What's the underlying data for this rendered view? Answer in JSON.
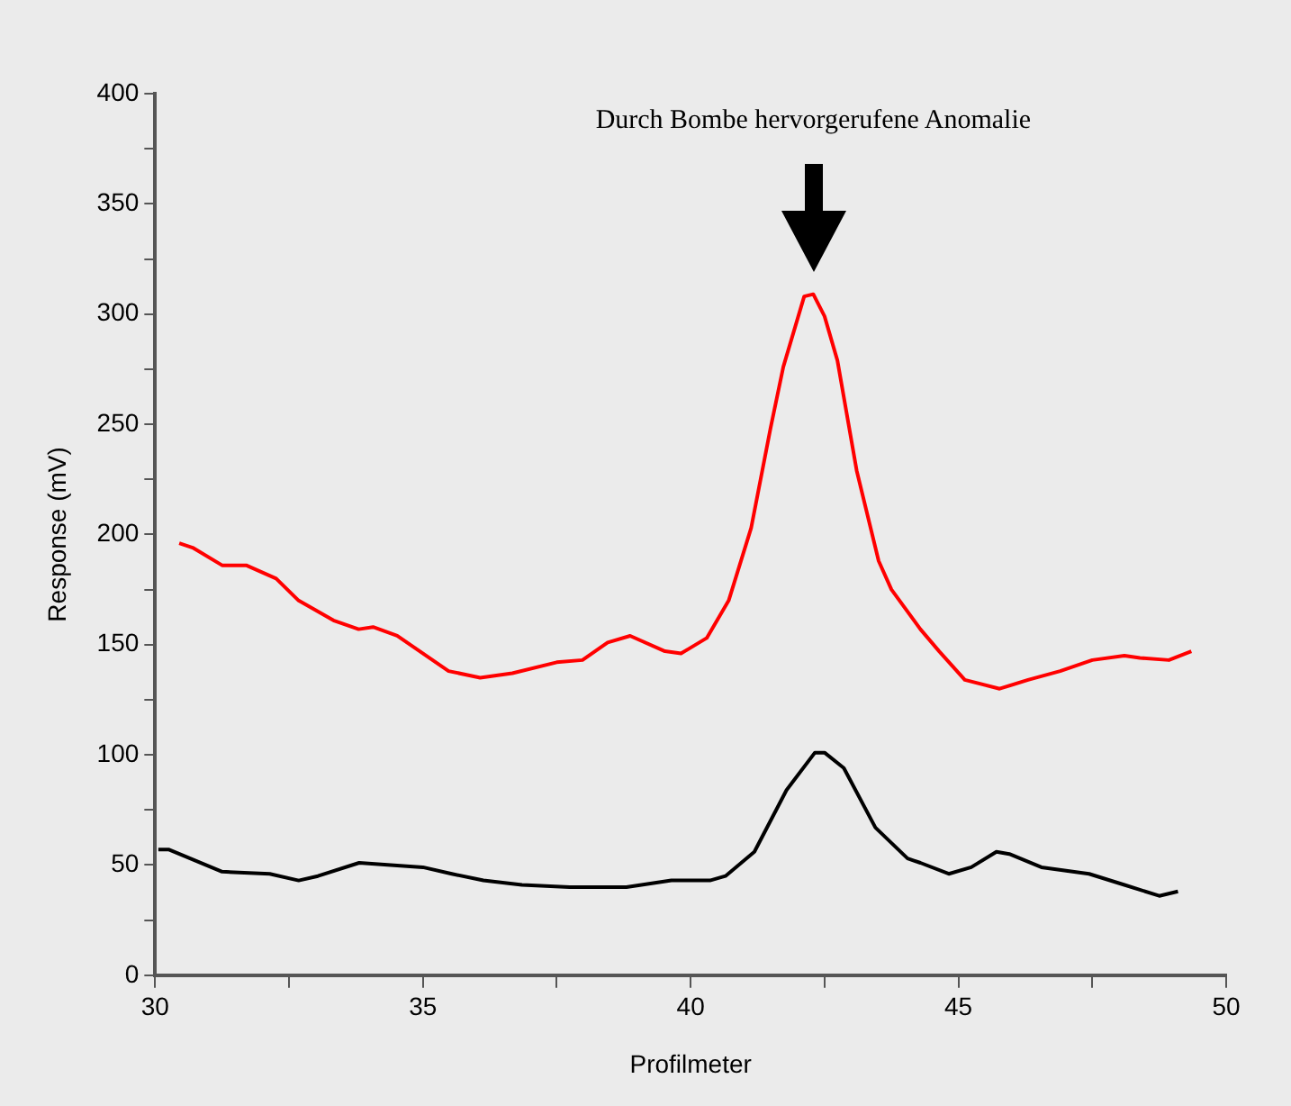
{
  "chart_data": {
    "type": "line",
    "xlabel": "Profilmeter",
    "ylabel": "Response (mV)",
    "xlim": [
      30,
      50
    ],
    "xticks": [
      30,
      {
        "value": 32.5,
        "label": null
      },
      35,
      {
        "value": 37.5,
        "label": null
      },
      40,
      {
        "value": 42.5,
        "label": null
      },
      45,
      {
        "value": 47.5,
        "label": null
      },
      50
    ],
    "ylim": [
      0,
      400
    ],
    "yticks": [
      0,
      {
        "value": 25,
        "label": null
      },
      50,
      {
        "value": 75,
        "label": null
      },
      100,
      {
        "value": 125,
        "label": null
      },
      150,
      {
        "value": 175,
        "label": null
      },
      200,
      {
        "value": 225,
        "label": null
      },
      250,
      {
        "value": 275,
        "label": null
      },
      300,
      {
        "value": 325,
        "label": null
      },
      350,
      {
        "value": 375,
        "label": null
      },
      400
    ],
    "grid": false,
    "legend": false,
    "marker": "none",
    "line_style": "solid",
    "annotations": [
      "Durch Bombe hervorgerufene Anomalie"
    ],
    "series": [
      {
        "color": "#ff0000",
        "x": [
          30.45,
          30.7,
          31.25,
          31.7,
          32.26,
          32.68,
          33.33,
          33.8,
          34.07,
          34.52,
          35.48,
          36.07,
          36.67,
          37.5,
          37.98,
          38.45,
          38.87,
          39.52,
          39.82,
          40.3,
          40.71,
          41.13,
          41.49,
          41.73,
          42.12,
          42.29,
          42.5,
          42.74,
          43.1,
          43.51,
          43.75,
          44.29,
          44.64,
          45.12,
          45.77,
          46.3,
          46.9,
          47.5,
          48.1,
          48.39,
          48.93,
          49.35
        ],
        "values": [
          196,
          194,
          186,
          186,
          180,
          170,
          161,
          157,
          158,
          154,
          138,
          135,
          137,
          142,
          143,
          151,
          154,
          147,
          146,
          153,
          170,
          203,
          248,
          276,
          308,
          309,
          299,
          279,
          229,
          188,
          175,
          157,
          147,
          134,
          130,
          134,
          138,
          143,
          145,
          144,
          143,
          147
        ]
      },
      {
        "color": "#000000",
        "x": [
          30.06,
          30.26,
          31.25,
          32.14,
          32.68,
          33.04,
          33.81,
          34.4,
          35,
          35.54,
          36.13,
          36.85,
          37.74,
          38.8,
          39.64,
          40.36,
          40.65,
          41.19,
          41.79,
          42.32,
          42.5,
          42.86,
          43.45,
          44.05,
          44.29,
          44.82,
          45.24,
          45.71,
          45.95,
          46.55,
          47.44,
          48.1,
          48.75,
          49.1
        ],
        "values": [
          57,
          57,
          47,
          46,
          43,
          45,
          51,
          50,
          49,
          46,
          43,
          41,
          40,
          40,
          43,
          43,
          45,
          56,
          84,
          101,
          101,
          94,
          67,
          53,
          51,
          46,
          49,
          56,
          55,
          49,
          46,
          41,
          36,
          38
        ]
      }
    ]
  }
}
